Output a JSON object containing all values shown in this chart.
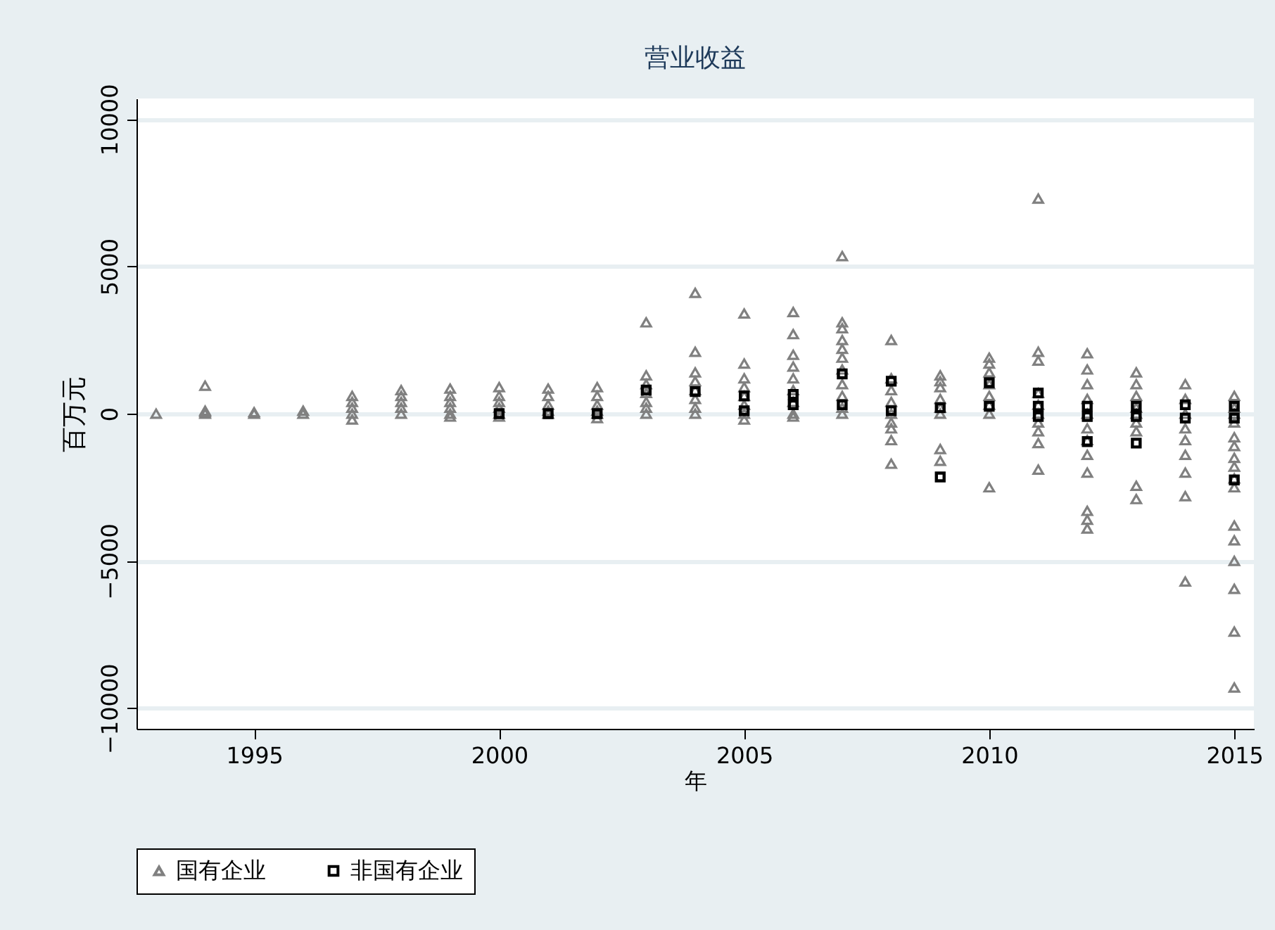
{
  "chart_data": {
    "type": "scatter",
    "title": "营业收益",
    "xlabel": "年",
    "ylabel": "百万元",
    "xlim": [
      1992.6,
      2015.4
    ],
    "xticks": [
      1995,
      2000,
      2005,
      2010,
      2015
    ],
    "ylim": [
      -10700,
      10700
    ],
    "yticks": [
      -10000,
      -5000,
      0,
      5000,
      10000
    ],
    "grid": "y",
    "legend": "bottom",
    "series": [
      {
        "name": "国有企业",
        "color": "#808080",
        "marker": "triangle",
        "x": [
          1993,
          1994,
          1994,
          1994,
          1994,
          1995,
          1995,
          1996,
          1996,
          1997,
          1997,
          1997,
          1997,
          1997,
          1998,
          1998,
          1998,
          1998,
          1998,
          1999,
          1999,
          1999,
          1999,
          1999,
          1999,
          2000,
          2000,
          2000,
          2000,
          2000,
          2000,
          2001,
          2001,
          2001,
          2001,
          2001,
          2002,
          2002,
          2002,
          2002,
          2002,
          2002,
          2003,
          2003,
          2003,
          2003,
          2003,
          2003,
          2003,
          2004,
          2004,
          2004,
          2004,
          2004,
          2004,
          2004,
          2004,
          2005,
          2005,
          2005,
          2005,
          2005,
          2005,
          2005,
          2005,
          2006,
          2006,
          2006,
          2006,
          2006,
          2006,
          2006,
          2006,
          2006,
          2007,
          2007,
          2007,
          2007,
          2007,
          2007,
          2007,
          2007,
          2007,
          2007,
          2007,
          2008,
          2008,
          2008,
          2008,
          2008,
          2008,
          2008,
          2008,
          2008,
          2009,
          2009,
          2009,
          2009,
          2009,
          2009,
          2009,
          2009,
          2010,
          2010,
          2010,
          2010,
          2010,
          2010,
          2010,
          2010,
          2011,
          2011,
          2011,
          2011,
          2011,
          2011,
          2011,
          2011,
          2011,
          2011,
          2012,
          2012,
          2012,
          2012,
          2012,
          2012,
          2012,
          2012,
          2012,
          2012,
          2012,
          2012,
          2013,
          2013,
          2013,
          2013,
          2013,
          2013,
          2013,
          2013,
          2013,
          2014,
          2014,
          2014,
          2014,
          2014,
          2014,
          2014,
          2014,
          2014,
          2015,
          2015,
          2015,
          2015,
          2015,
          2015,
          2015,
          2015,
          2015,
          2015,
          2015,
          2015,
          2015,
          2015,
          2015,
          2015
        ],
        "values": [
          0,
          950,
          100,
          50,
          0,
          50,
          0,
          100,
          0,
          600,
          400,
          200,
          0,
          -200,
          800,
          600,
          400,
          200,
          0,
          850,
          600,
          400,
          200,
          0,
          -100,
          900,
          600,
          400,
          200,
          0,
          -100,
          850,
          600,
          300,
          100,
          0,
          900,
          600,
          300,
          100,
          0,
          -150,
          3100,
          1300,
          1000,
          700,
          400,
          200,
          0,
          4100,
          2100,
          1400,
          1100,
          800,
          500,
          200,
          0,
          3400,
          1700,
          1200,
          900,
          600,
          300,
          0,
          -200,
          3450,
          2700,
          2000,
          1600,
          1200,
          800,
          400,
          0,
          -100,
          5350,
          3100,
          2900,
          2500,
          2200,
          1900,
          1500,
          1000,
          600,
          200,
          0,
          2500,
          1200,
          800,
          400,
          0,
          -300,
          -500,
          -900,
          -1700,
          1300,
          1100,
          900,
          500,
          200,
          0,
          -1200,
          -1600,
          1900,
          1700,
          1400,
          1000,
          600,
          300,
          0,
          -2500,
          7300,
          2100,
          1800,
          700,
          300,
          0,
          -300,
          -600,
          -1000,
          -1900,
          2050,
          1500,
          1000,
          500,
          0,
          -500,
          -900,
          -1400,
          -2000,
          -3300,
          -3600,
          -3900,
          1400,
          1000,
          600,
          200,
          0,
          -300,
          -600,
          -2450,
          -2900,
          1000,
          500,
          0,
          -500,
          -900,
          -1400,
          -2000,
          -2800,
          -5700,
          600,
          200,
          0,
          -300,
          -800,
          -1100,
          -1500,
          -1800,
          -2200,
          -2500,
          -3800,
          -4300,
          -5000,
          -5950,
          -7400,
          -9300
        ]
      },
      {
        "name": "非国有企业",
        "color": "#000000",
        "marker": "square",
        "x": [
          2000,
          2001,
          2002,
          2003,
          2004,
          2005,
          2005,
          2006,
          2006,
          2007,
          2007,
          2008,
          2008,
          2009,
          2009,
          2010,
          2010,
          2011,
          2011,
          2011,
          2012,
          2012,
          2012,
          2013,
          2013,
          2013,
          2014,
          2014,
          2015,
          2015,
          2015
        ],
        "values": [
          0,
          0,
          0,
          800,
          750,
          600,
          100,
          650,
          300,
          1350,
          300,
          1100,
          100,
          200,
          -2150,
          1050,
          250,
          700,
          250,
          -100,
          250,
          -100,
          -950,
          250,
          -100,
          -1000,
          300,
          -150,
          250,
          -150,
          -2250
        ]
      }
    ]
  }
}
